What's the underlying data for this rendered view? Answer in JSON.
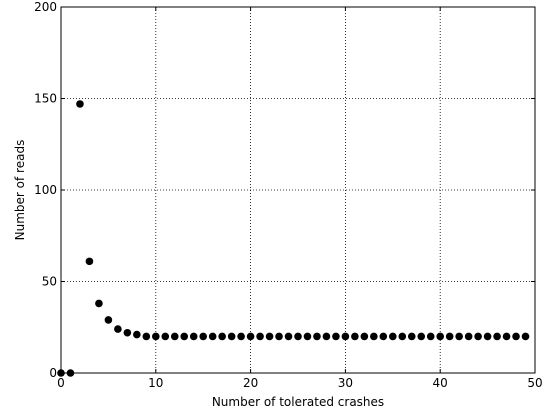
{
  "chart_data": {
    "type": "scatter",
    "xlabel": "Number of tolerated crashes",
    "ylabel": "Number of reads",
    "xlim": [
      0,
      50
    ],
    "ylim": [
      0,
      200
    ],
    "xticks": [
      0,
      10,
      20,
      30,
      40,
      50
    ],
    "yticks": [
      0,
      50,
      100,
      150,
      200
    ],
    "xtick_labels": [
      "0",
      "10",
      "20",
      "30",
      "40",
      "50"
    ],
    "ytick_labels": [
      "0",
      "50",
      "100",
      "150",
      "200"
    ],
    "grid": true,
    "grid_style": "dotted",
    "marker_color": "#000000",
    "series": [
      {
        "x": [
          0,
          1,
          2,
          3,
          4,
          5,
          6,
          7,
          8,
          9,
          10,
          11,
          12,
          13,
          14,
          15,
          16,
          17,
          18,
          19,
          20,
          21,
          22,
          23,
          24,
          25,
          26,
          27,
          28,
          29,
          30,
          31,
          32,
          33,
          34,
          35,
          36,
          37,
          38,
          39,
          40,
          41,
          42,
          43,
          44,
          45,
          46,
          47,
          48,
          49
        ],
        "y": [
          0,
          0,
          147,
          61,
          38,
          29,
          24,
          22,
          21,
          20,
          20,
          20,
          20,
          20,
          20,
          20,
          20,
          20,
          20,
          20,
          20,
          20,
          20,
          20,
          20,
          20,
          20,
          20,
          20,
          20,
          20,
          20,
          20,
          20,
          20,
          20,
          20,
          20,
          20,
          20,
          20,
          20,
          20,
          20,
          20,
          20,
          20,
          20,
          20,
          20
        ]
      }
    ]
  }
}
